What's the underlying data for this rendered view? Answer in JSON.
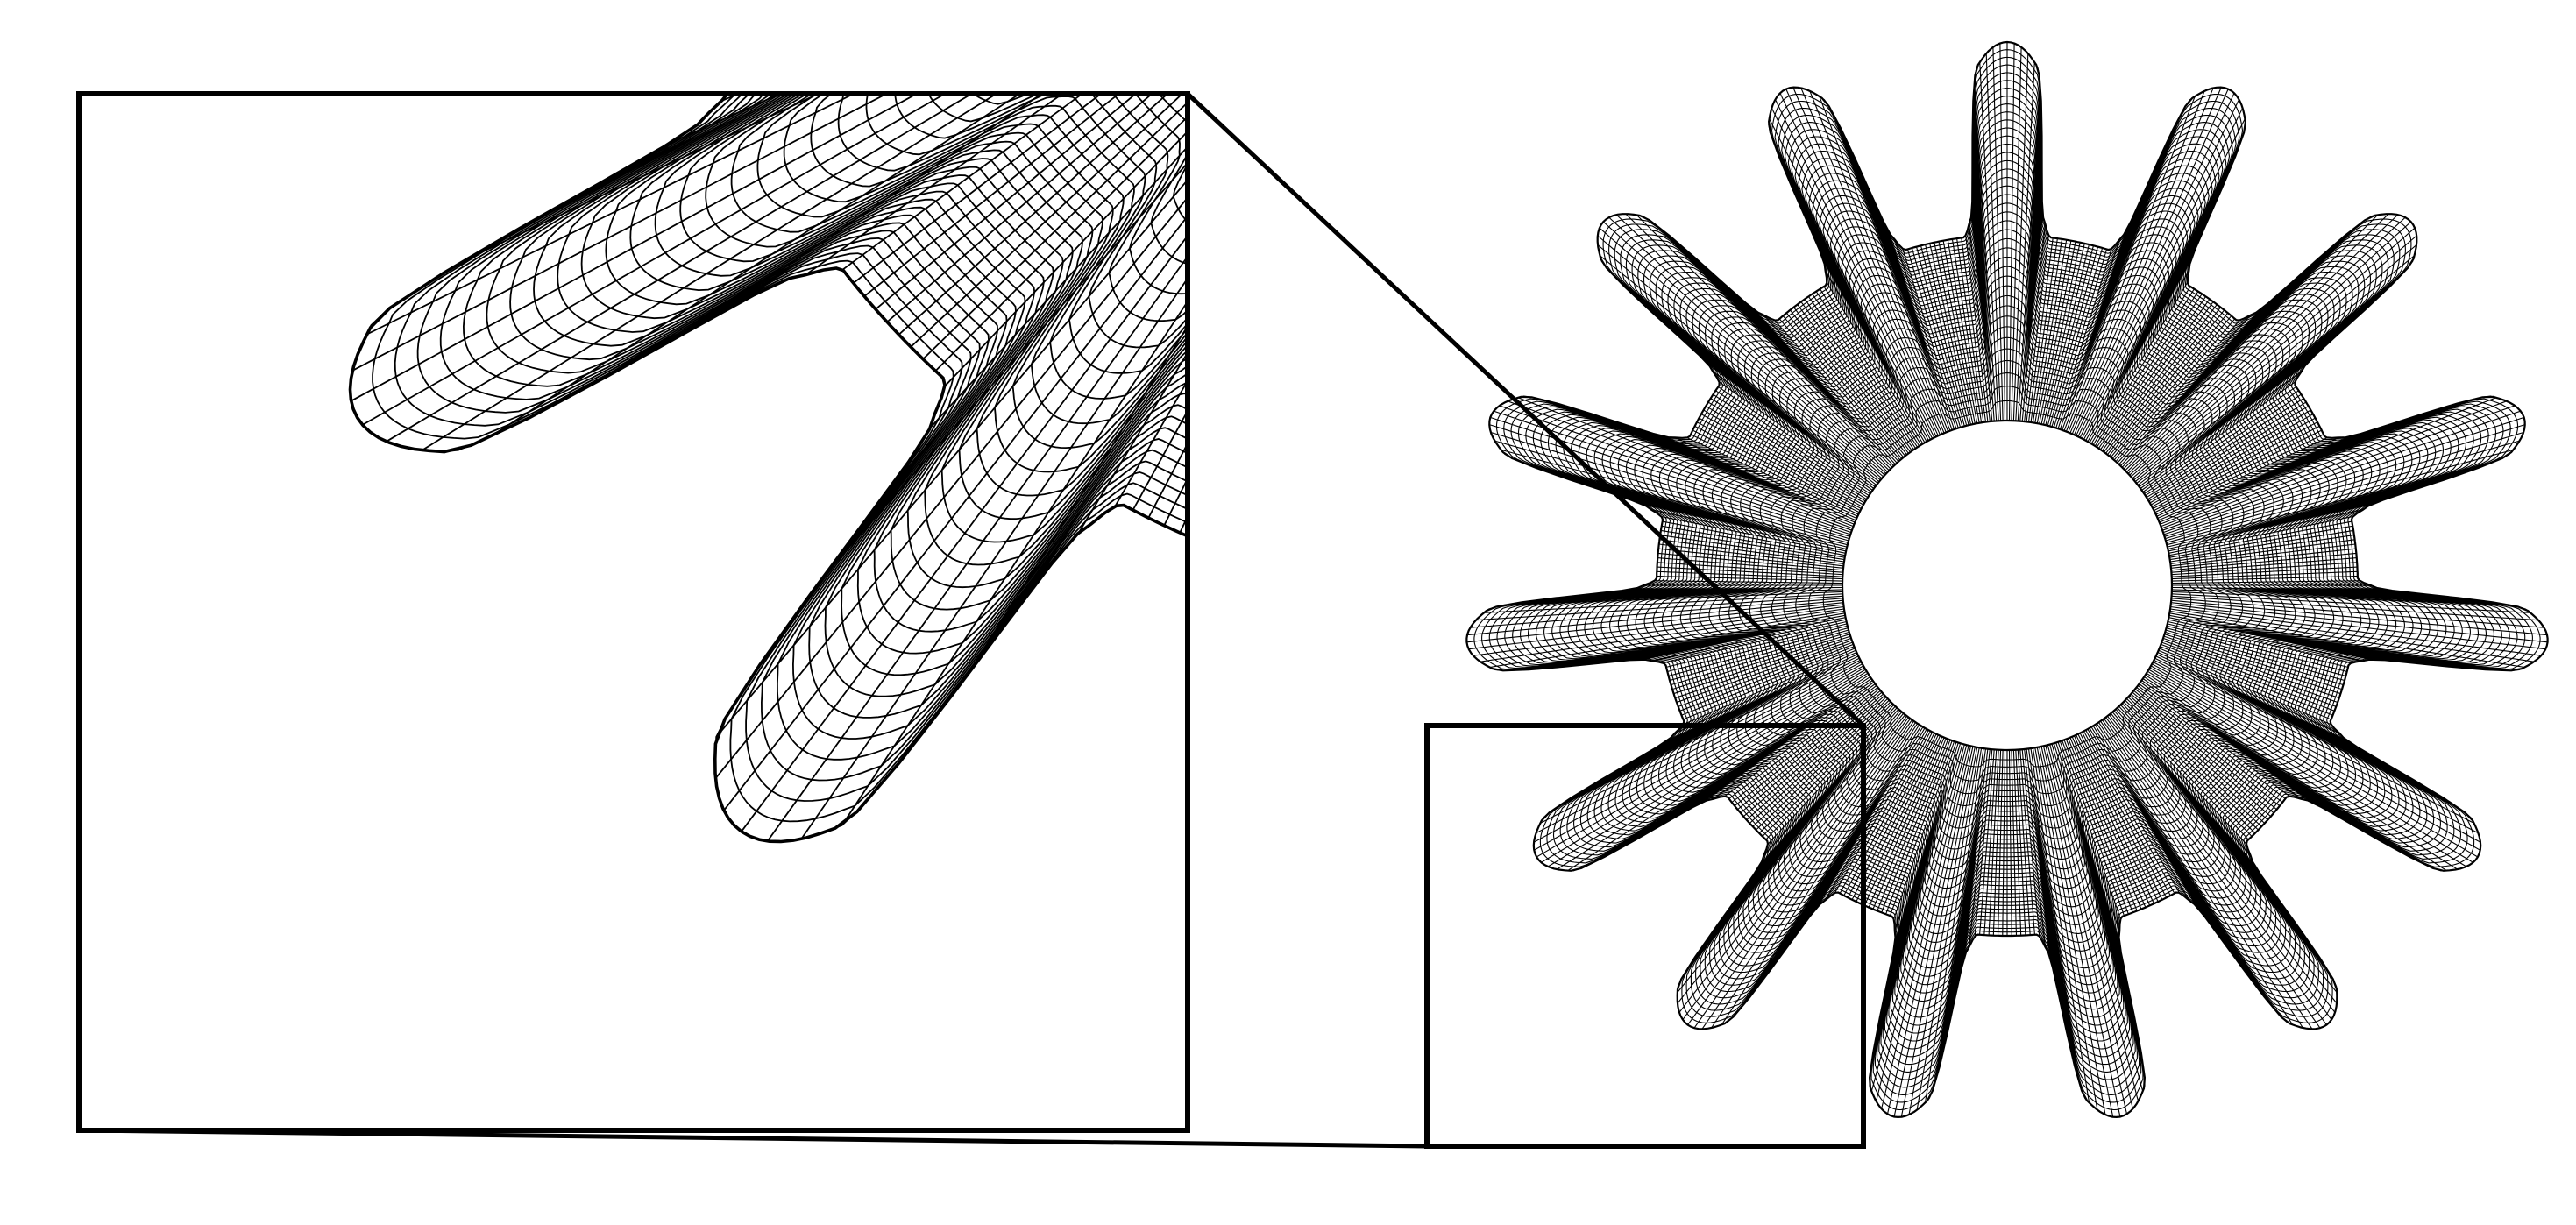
{
  "figure": {
    "description_visible_text": "",
    "gear": {
      "teeth": 15,
      "mesh": "quadrilateral",
      "has_center_bore": true
    },
    "zoom_inset": {
      "shown": true,
      "frame_style": "rectangular outline with connector lines"
    },
    "colors": {
      "background": "#ffffff",
      "mesh_stroke": "#000000",
      "frame_stroke": "#000000"
    }
  }
}
